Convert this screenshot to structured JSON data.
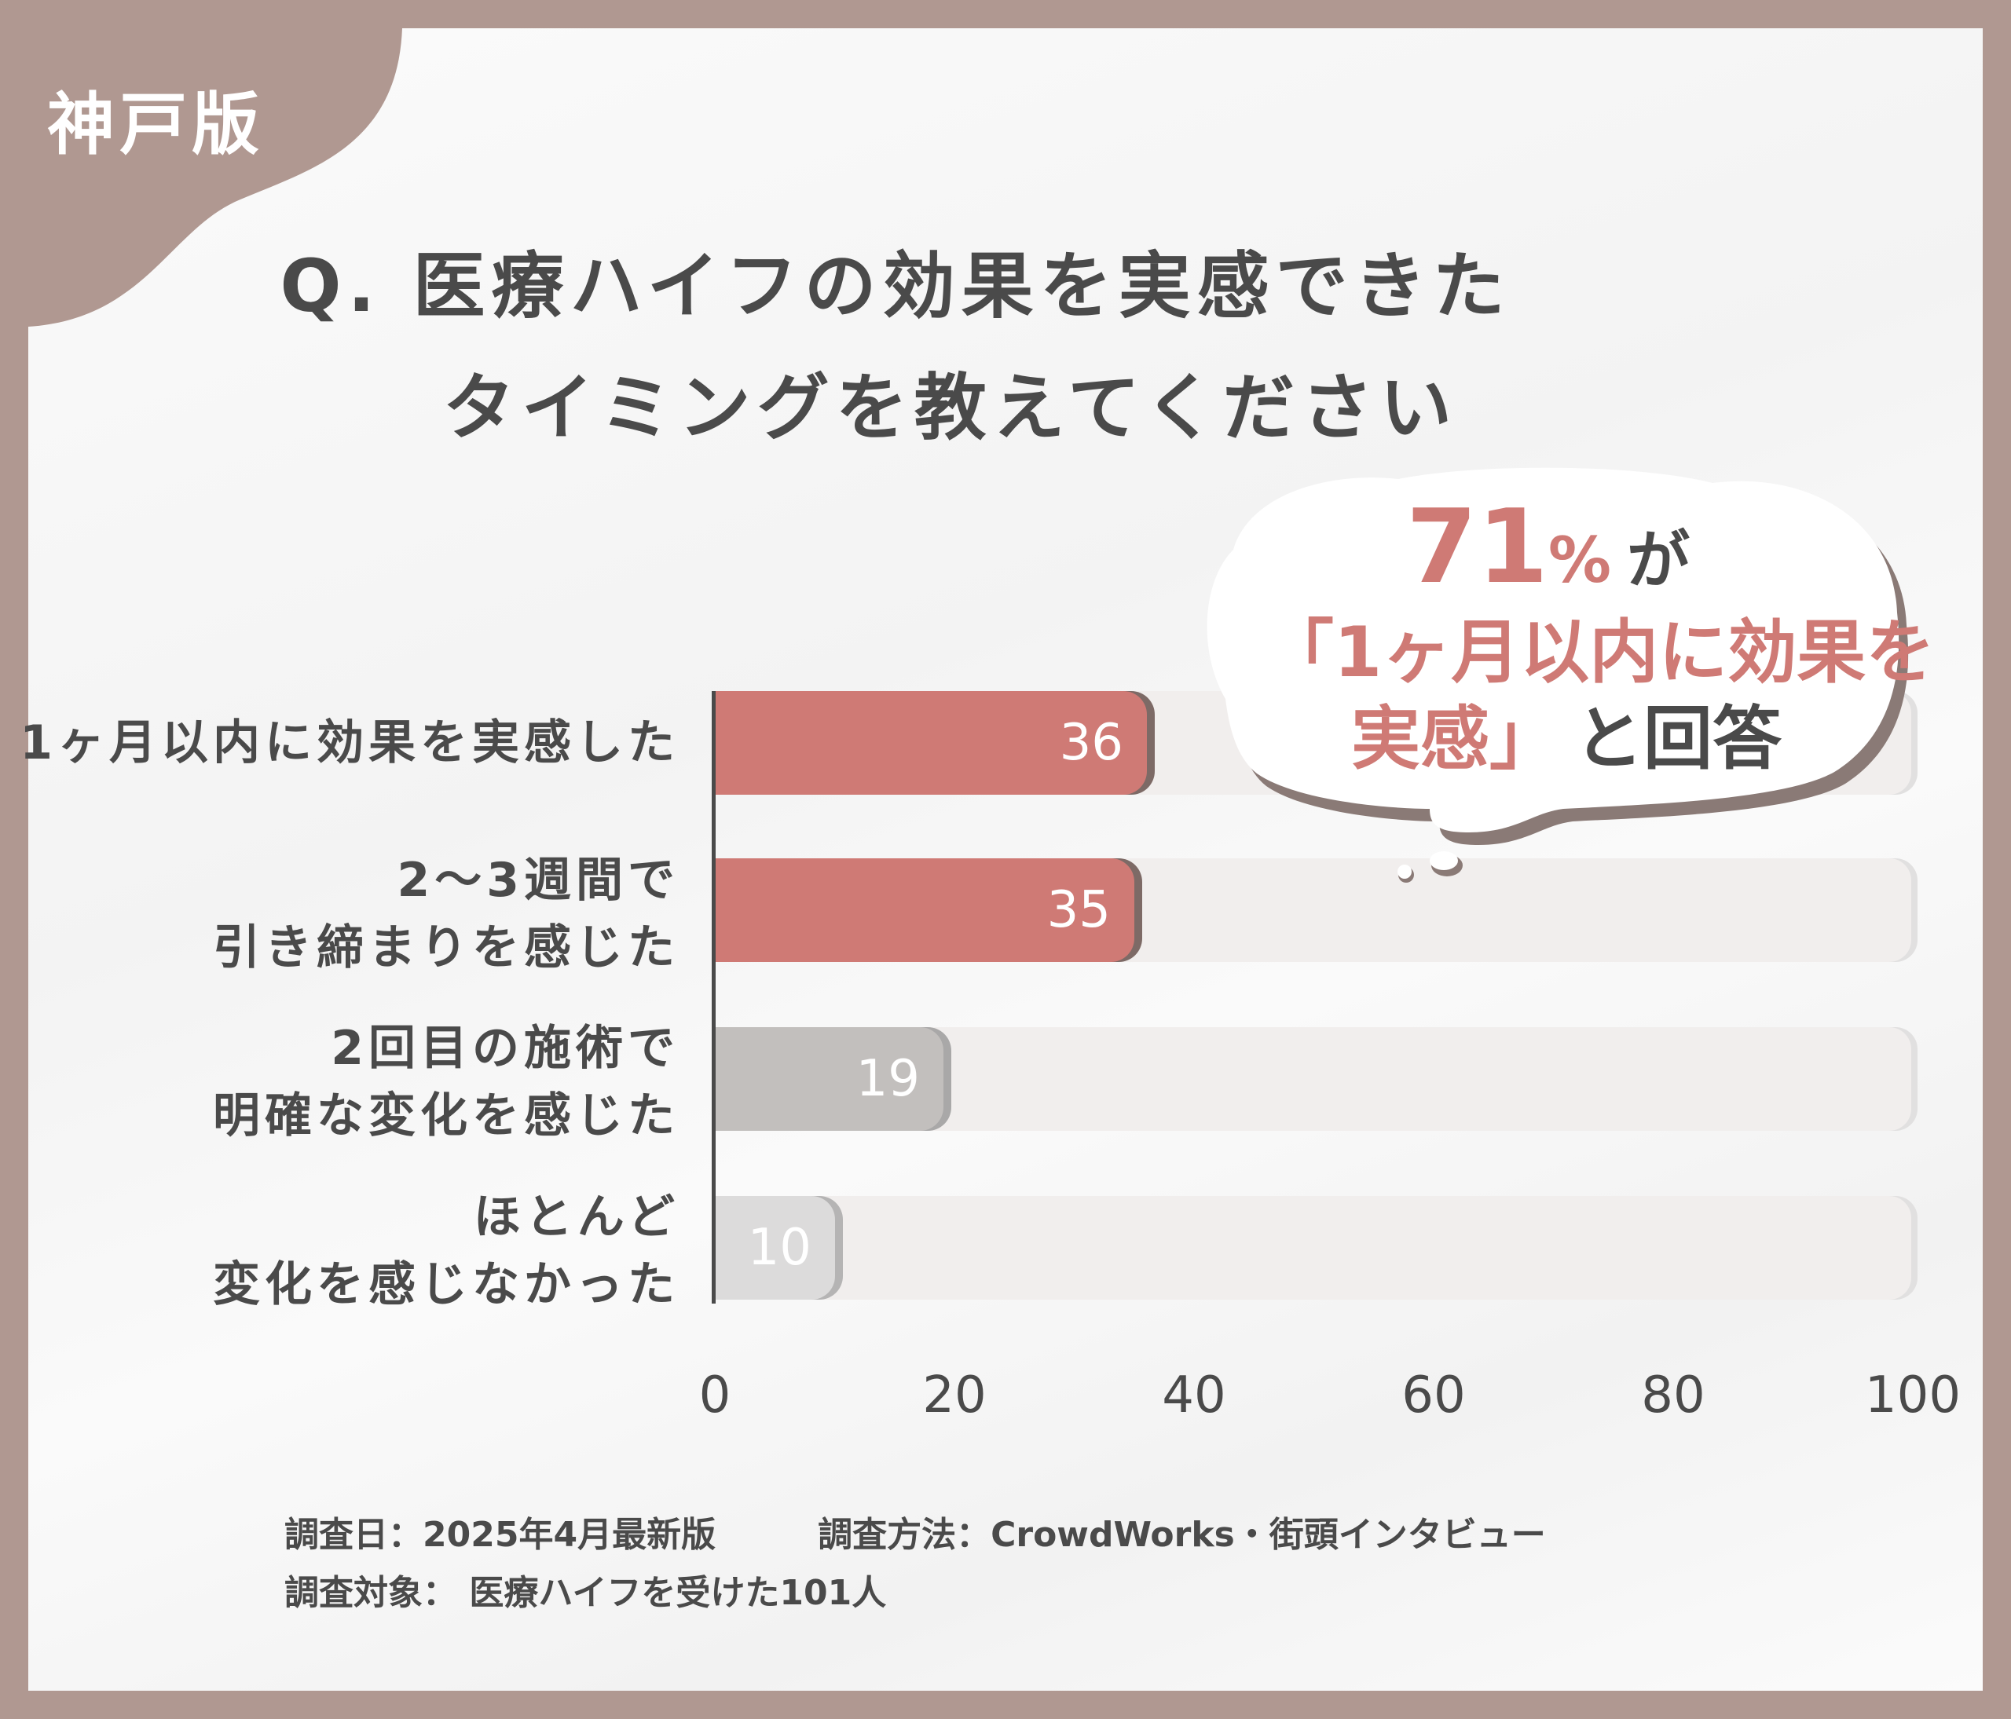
{
  "badge": {
    "label": "神戸版"
  },
  "title": {
    "line1": "Q. 医療ハイフの効果を実感できた",
    "line2": "タイミングを教えてください"
  },
  "callout": {
    "percent": "71",
    "percent_sign": "%",
    "particle": "が",
    "quote_line": "「1ヶ月以内に効果を",
    "quote_end": "実感」",
    "tail": "と回答"
  },
  "chart_data": {
    "type": "bar",
    "orientation": "horizontal",
    "title": "Q. 医療ハイフの効果を実感できたタイミングを教えてください",
    "categories": [
      "1ヶ月以内に効果を実感した",
      "2〜3週間で引き締まりを感じた",
      "2回目の施術で明確な変化を感じた",
      "ほとんど変化を感じなかった"
    ],
    "category_lines": [
      [
        "1ヶ月以内に効果を実感した"
      ],
      [
        "2〜3週間で",
        "引き締まりを感じた"
      ],
      [
        "2回目の施術で",
        "明確な変化を感じた"
      ],
      [
        "ほとんど",
        "変化を感じなかった"
      ]
    ],
    "values": [
      36,
      35,
      19,
      10
    ],
    "bar_colors": [
      "#cf7a75",
      "#cf7a75",
      "#c2bfbd",
      "#dcdbdb"
    ],
    "bar_edge_colors": [
      "#7d6a66",
      "#7d6a66",
      "#a9a8a8",
      "#b5b4b4"
    ],
    "xlim": [
      0,
      100
    ],
    "xticks": [
      "0",
      "20",
      "40",
      "60",
      "80",
      "100"
    ],
    "xlabel": "",
    "ylabel": "",
    "grid": false,
    "legend": null,
    "annotation": "71%が「1ヶ月以内に効果を実感」と回答"
  },
  "footer": {
    "date": "調査日：2025年4月最新版",
    "method": "調査方法：CrowdWorks・街頭インタビュー",
    "target": "調査対象： 医療ハイフを受けた101人"
  },
  "colors": {
    "frame": "#b09891",
    "accent": "#cf7a75",
    "text": "#4a4a4a",
    "track": "#f1eeed"
  }
}
